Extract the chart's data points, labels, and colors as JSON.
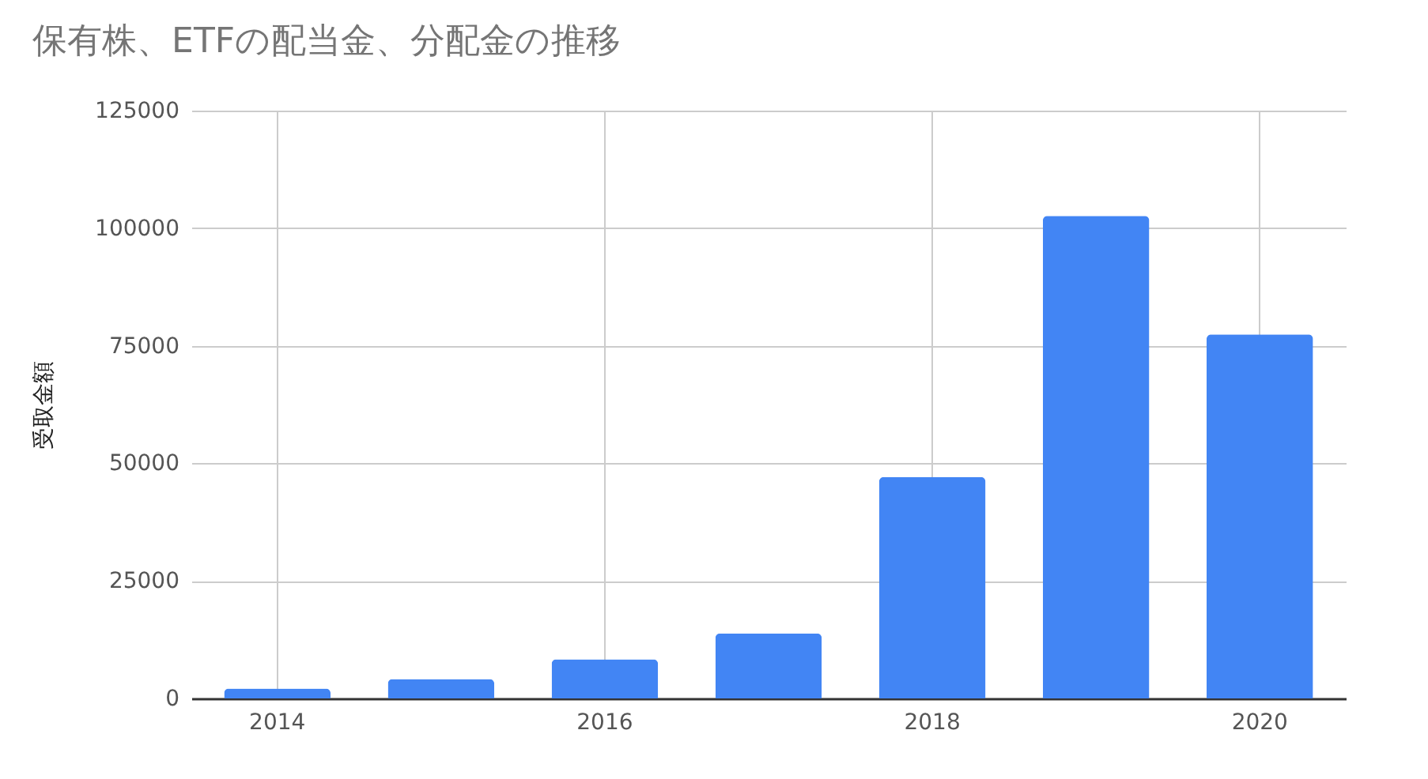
{
  "chart_data": {
    "type": "bar",
    "title": "保有株、ETFの配当金、分配金の推移",
    "ylabel": "受取金額",
    "categories": [
      "2014",
      null,
      "2016",
      null,
      "2018",
      null,
      "2020"
    ],
    "series": [
      {
        "color": "#4285f4",
        "values": [
          2100,
          4100,
          8300,
          13800,
          47100,
          102600,
          77400
        ]
      }
    ],
    "ylim": [
      0,
      125000
    ],
    "yticks": [
      0,
      25000,
      50000,
      75000,
      100000,
      125000
    ],
    "grid": true,
    "legend": false
  }
}
